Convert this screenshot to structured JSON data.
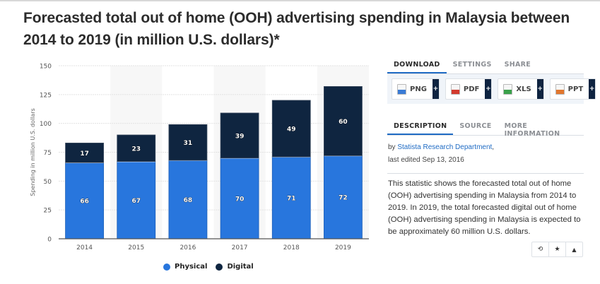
{
  "page": {
    "title": "Forecasted total out of home (OOH) advertising spending in Malaysia between 2014 to 2019 (in million U.S. dollars)*"
  },
  "chart_data": {
    "type": "bar",
    "stacked": true,
    "title": "Forecasted total out of home (OOH) advertising spending in Malaysia between 2014 to 2019 (in million U.S. dollars)*",
    "categories": [
      "2014",
      "2015",
      "2016",
      "2017",
      "2018",
      "2019"
    ],
    "series": [
      {
        "name": "Physical",
        "color": "#2876dd",
        "values": [
          66,
          67,
          68,
          70,
          71,
          72
        ]
      },
      {
        "name": "Digital",
        "color": "#0f2540",
        "values": [
          17,
          23,
          31,
          39,
          49,
          60
        ]
      }
    ],
    "xlabel": "",
    "ylabel": "Spending in million U.S. dollars",
    "ylim": [
      0,
      150
    ],
    "yticks": [
      "0",
      "25",
      "50",
      "75",
      "100",
      "125",
      "150"
    ],
    "ytick_values": [
      0,
      25,
      50,
      75,
      100,
      125,
      150
    ],
    "grid": true,
    "legend": "bottom-center",
    "data_labels": true
  },
  "legend": {
    "items": [
      {
        "label": "Physical",
        "color": "#2876dd"
      },
      {
        "label": "Digital",
        "color": "#0f2540"
      }
    ]
  },
  "download_panel": {
    "tabs": [
      "DOWNLOAD",
      "SETTINGS",
      "SHARE"
    ],
    "active_tab": "DOWNLOAD",
    "buttons": [
      {
        "label": "PNG",
        "icon": "png-file-icon",
        "icon_color": "#3a7bd5"
      },
      {
        "label": "PDF",
        "icon": "pdf-file-icon",
        "icon_color": "#d23a2e"
      },
      {
        "label": "XLS",
        "icon": "xls-file-icon",
        "icon_color": "#3aa14b"
      },
      {
        "label": "PPT",
        "icon": "ppt-file-icon",
        "icon_color": "#e2772e"
      }
    ],
    "plus_label": "+"
  },
  "info_panel": {
    "tabs": [
      "DESCRIPTION",
      "SOURCE",
      "MORE INFORMATION"
    ],
    "active_tab": "DESCRIPTION",
    "by_prefix": "by ",
    "author": "Statista Research Department",
    "author_suffix": ",",
    "last_edited": "last edited Sep 13, 2016",
    "description": "This statistic shows the forecasted total out of home (OOH) advertising spending in Malaysia from 2014 to 2019. In 2019, the total forecasted digital out of home (OOH) advertising spending in Malaysia is expected to be approximately 60 million U.S. dollars.",
    "actions": [
      {
        "name": "history-icon",
        "glyph": "⟲"
      },
      {
        "name": "star-icon",
        "glyph": "★"
      },
      {
        "name": "bell-icon",
        "glyph": "🔔"
      }
    ]
  }
}
